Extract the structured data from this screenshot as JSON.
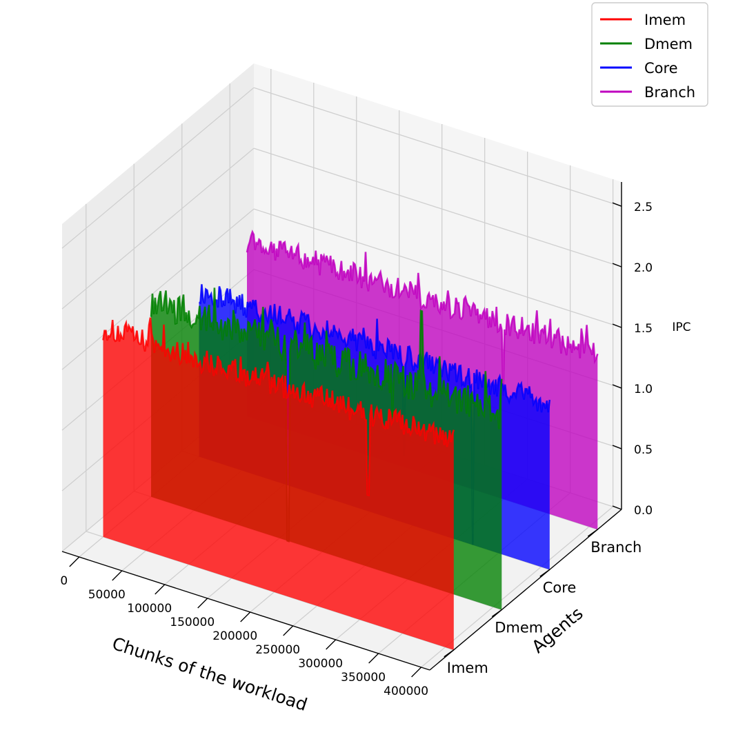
{
  "chart_data": {
    "type": "area",
    "projection": "3d",
    "title": "",
    "xlabel": "Chunks of the workload",
    "ylabel": "Agents",
    "zlabel": "IPC",
    "xlim": [
      -20000,
      410000
    ],
    "zlim": [
      0,
      2.7
    ],
    "x_ticks": [
      "0",
      "50000",
      "100000",
      "150000",
      "200000",
      "250000",
      "300000",
      "350000",
      "400000"
    ],
    "x_tick_values": [
      0,
      50000,
      100000,
      150000,
      200000,
      250000,
      300000,
      350000,
      400000
    ],
    "agent_ticks": [
      "Imem",
      "Dmem",
      "Core",
      "Branch"
    ],
    "z_ticks": [
      "0.0",
      "0.5",
      "1.0",
      "1.5",
      "2.0",
      "2.5"
    ],
    "z_tick_values": [
      0,
      0.5,
      1.0,
      1.5,
      2.0,
      2.5
    ],
    "grid": true,
    "legend": {
      "placement": "top-right",
      "entries": [
        "Imem",
        "Dmem",
        "Core",
        "Branch"
      ]
    },
    "series": [
      {
        "name": "Imem",
        "color": "#ff0000",
        "x_range": [
          0,
          410000
        ],
        "typical_ipc": 1.72,
        "noise": 0.1,
        "dips": [
          {
            "x": 310000,
            "ipc": 1.05
          }
        ]
      },
      {
        "name": "Dmem",
        "color": "#008000",
        "x_range": [
          0,
          410000
        ],
        "typical_ipc": 1.62,
        "noise": 0.14,
        "dips": [
          {
            "x": 160000,
            "ipc": 0.0
          },
          {
            "x": 282000,
            "ipc": 1.3
          },
          {
            "x": 316000,
            "ipc": 2.25
          }
        ]
      },
      {
        "name": "Core",
        "color": "#0000ff",
        "x_range": [
          0,
          410000
        ],
        "typical_ipc": 1.37,
        "noise": 0.1,
        "dips": [
          {
            "x": 240000,
            "ipc": 0.55
          },
          {
            "x": 320000,
            "ipc": 0.0
          }
        ]
      },
      {
        "name": "Branch",
        "color": "#bf00bf",
        "x_range": [
          0,
          410000
        ],
        "typical_ipc": 1.45,
        "noise": 0.1,
        "dips": [
          {
            "x": 300000,
            "ipc": 0.85
          }
        ]
      }
    ]
  }
}
